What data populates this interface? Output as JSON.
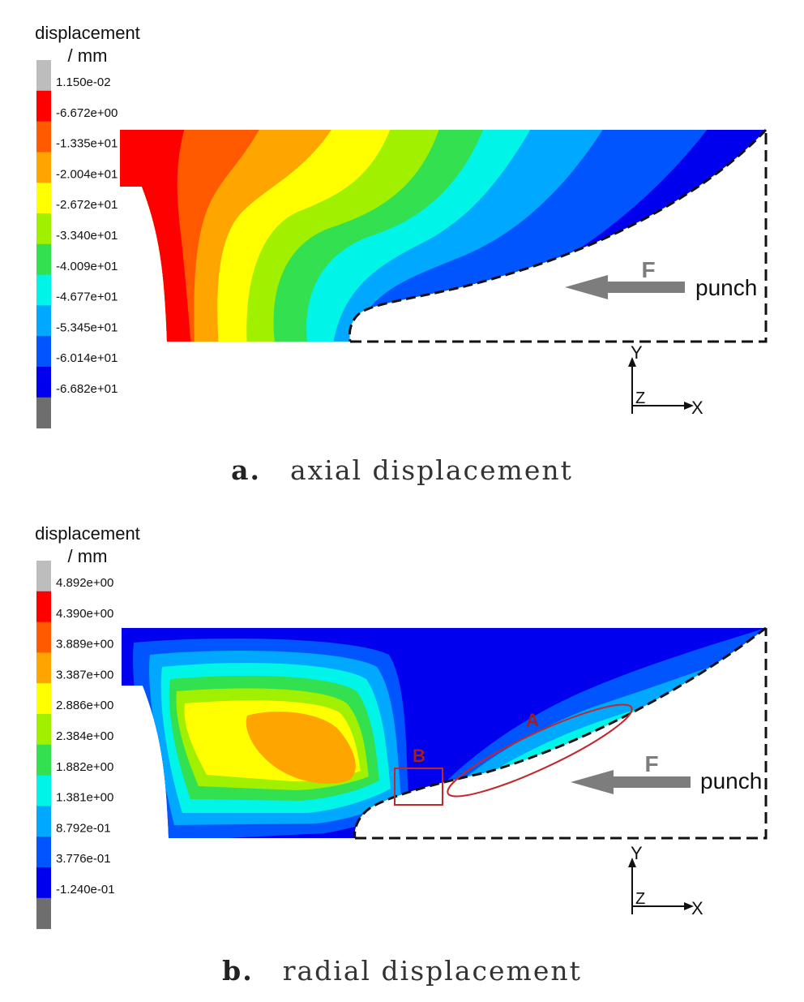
{
  "panels": [
    {
      "id": "a",
      "legend_title_1": "displacement",
      "legend_title_2": "/ mm",
      "legend_values": [
        "1.150e-02",
        "-6.672e+00",
        "-1.335e+01",
        "-2.004e+01",
        "-2.672e+01",
        "-3.340e+01",
        "-4.009e+01",
        "-4.677e+01",
        "-5.345e+01",
        "-6.014e+01",
        "-6.682e+01"
      ],
      "legend_colors": [
        "#bdbdbd",
        "#ff0000",
        "#ff5a00",
        "#ffa500",
        "#ffff00",
        "#a0f000",
        "#32e050",
        "#00f5e8",
        "#00a8ff",
        "#0055ff",
        "#0000ee",
        "#6e6e6e"
      ],
      "force_label": "F",
      "punch_label": "punch",
      "axis_y": "Y",
      "axis_z": "Z",
      "axis_x": "X",
      "caption_letter": "a.",
      "caption_text": "axial displacement"
    },
    {
      "id": "b",
      "legend_title_1": "displacement",
      "legend_title_2": "/ mm",
      "legend_values": [
        "4.892e+00",
        "4.390e+00",
        "3.889e+00",
        "3.387e+00",
        "2.886e+00",
        "2.384e+00",
        "1.882e+00",
        "1.381e+00",
        "8.792e-01",
        "3.776e-01",
        "-1.240e-01"
      ],
      "legend_colors": [
        "#bdbdbd",
        "#ff0000",
        "#ff5a00",
        "#ffa500",
        "#ffff00",
        "#a0f000",
        "#32e050",
        "#00f5e8",
        "#00a8ff",
        "#0055ff",
        "#0000ee",
        "#6e6e6e"
      ],
      "force_label": "F",
      "punch_label": "punch",
      "axis_y": "Y",
      "axis_z": "Z",
      "axis_x": "X",
      "marker_a": "A",
      "marker_b": "B",
      "caption_letter": "b.",
      "caption_text": "radial displacement"
    }
  ]
}
